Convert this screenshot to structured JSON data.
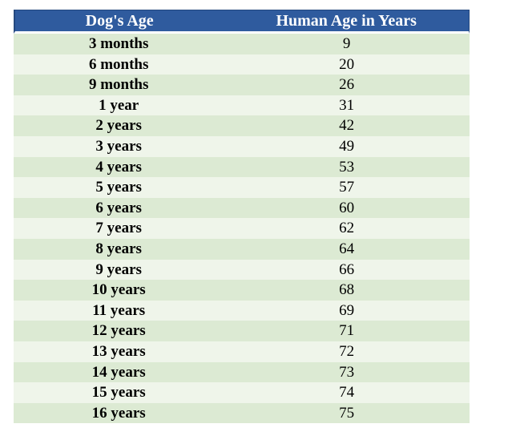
{
  "chart_data": {
    "type": "table",
    "columns": [
      "Dog's Age",
      "Human Age in Years"
    ],
    "rows": [
      [
        "3 months",
        9
      ],
      [
        "6 months",
        20
      ],
      [
        "9 months",
        26
      ],
      [
        "1 year",
        31
      ],
      [
        "2 years",
        42
      ],
      [
        "3 years",
        49
      ],
      [
        "4 years",
        53
      ],
      [
        "5 years",
        57
      ],
      [
        "6 years",
        60
      ],
      [
        "7 years",
        62
      ],
      [
        "8 years",
        64
      ],
      [
        "9 years",
        66
      ],
      [
        "10 years",
        68
      ],
      [
        "11 years",
        69
      ],
      [
        "12 years",
        71
      ],
      [
        "13 years",
        72
      ],
      [
        "14 years",
        73
      ],
      [
        "15 years",
        74
      ],
      [
        "16 years",
        75
      ]
    ],
    "title": "",
    "layout_hints": {
      "banded_rows": true,
      "first_band": "dark",
      "header_style": "solid-blue",
      "text_align": "center"
    }
  },
  "colors": {
    "header_bg": "#2f5b9e",
    "header_border": "#25497f",
    "header_text": "#ffffff",
    "row_dark": "#dcead3",
    "row_light": "#eff5ea",
    "body_text": "#000000"
  }
}
